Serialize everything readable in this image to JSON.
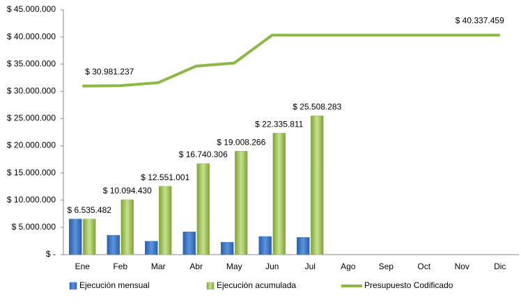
{
  "chart_data": {
    "type": "bar",
    "categories": [
      "Ene",
      "Feb",
      "Mar",
      "Abr",
      "May",
      "Jun",
      "Jul",
      "Ago",
      "Sep",
      "Oct",
      "Nov",
      "Dic"
    ],
    "ylim": [
      0,
      45000000
    ],
    "yticks": [
      {
        "value": 0,
        "label": "$ -"
      },
      {
        "value": 5000000,
        "label": "$ 5.000.000"
      },
      {
        "value": 10000000,
        "label": "$ 10.000.000"
      },
      {
        "value": 15000000,
        "label": "$ 15.000.000"
      },
      {
        "value": 20000000,
        "label": "$ 20.000.000"
      },
      {
        "value": 25000000,
        "label": "$ 25.000.000"
      },
      {
        "value": 30000000,
        "label": "$ 30.000.000"
      },
      {
        "value": 35000000,
        "label": "$ 35.000.000"
      },
      {
        "value": 40000000,
        "label": "$ 40.000.000"
      },
      {
        "value": 45000000,
        "label": "$ 45.000.000"
      }
    ],
    "grid": false,
    "legend": "bottom",
    "series": [
      {
        "name": "Ejecución mensual",
        "type": "bar",
        "color": "#3b74c6",
        "values": [
          6535482,
          3558948,
          2456571,
          4189305,
          2267960,
          3327545,
          3172472,
          null,
          null,
          null,
          null,
          null
        ]
      },
      {
        "name": "Ejecución acumulada",
        "type": "bar",
        "color": "#9bbb59",
        "values": [
          6535482,
          10094430,
          12551001,
          16740306,
          19008266,
          22335811,
          25508283,
          null,
          null,
          null,
          null,
          null
        ],
        "value_labels": [
          "$ 6.535.482",
          "$ 10.094.430",
          "$ 12.551.001",
          "$ 16.740.306",
          "$ 19.008.266",
          "$ 22.335.811",
          "$ 25.508.283",
          null,
          null,
          null,
          null,
          null
        ]
      },
      {
        "name": "Presupuesto Codificado",
        "type": "line",
        "color": "#8db843",
        "values": [
          30981237,
          31050000,
          31600000,
          34650000,
          35200000,
          40337459,
          40337459,
          40337459,
          40337459,
          40337459,
          40337459,
          40337459
        ],
        "value_labels": [
          "$ 30.981.237",
          null,
          null,
          null,
          null,
          null,
          null,
          null,
          null,
          null,
          null,
          "$ 40.337.459"
        ]
      }
    ]
  }
}
